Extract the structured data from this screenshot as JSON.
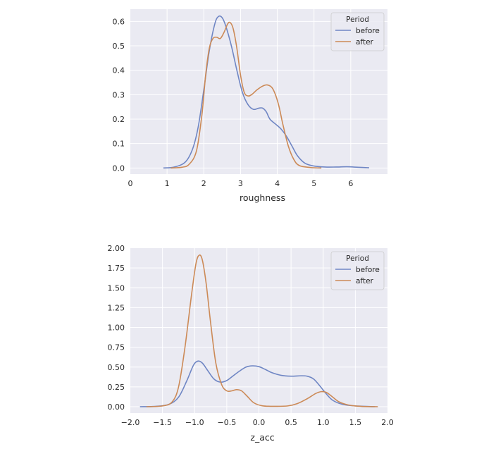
{
  "chart_data": [
    {
      "type": "line",
      "title": "",
      "xlabel": "roughness",
      "ylabel": "",
      "xlim": [
        0,
        7
      ],
      "ylim": [
        -0.025,
        0.65
      ],
      "x_ticks": [
        0,
        1,
        2,
        3,
        4,
        5,
        6
      ],
      "y_ticks": [
        0.0,
        0.1,
        0.2,
        0.3,
        0.4,
        0.5,
        0.6
      ],
      "x_tick_labels": [
        "0",
        "1",
        "2",
        "3",
        "4",
        "5",
        "6"
      ],
      "y_tick_labels": [
        "0.0",
        "0.1",
        "0.2",
        "0.3",
        "0.4",
        "0.5",
        "0.6"
      ],
      "grid": true,
      "legend": {
        "title": "Period",
        "placement": "top-right"
      },
      "series": [
        {
          "name": "before",
          "color": "#6f86c4",
          "points": [
            [
              0.9,
              0.0
            ],
            [
              1.2,
              0.004
            ],
            [
              1.5,
              0.025
            ],
            [
              1.7,
              0.08
            ],
            [
              1.85,
              0.17
            ],
            [
              2.0,
              0.32
            ],
            [
              2.15,
              0.48
            ],
            [
              2.3,
              0.59
            ],
            [
              2.4,
              0.62
            ],
            [
              2.5,
              0.615
            ],
            [
              2.6,
              0.58
            ],
            [
              2.75,
              0.5
            ],
            [
              2.9,
              0.4
            ],
            [
              3.05,
              0.31
            ],
            [
              3.2,
              0.26
            ],
            [
              3.35,
              0.24
            ],
            [
              3.5,
              0.245
            ],
            [
              3.6,
              0.245
            ],
            [
              3.7,
              0.23
            ],
            [
              3.8,
              0.2
            ],
            [
              3.95,
              0.18
            ],
            [
              4.1,
              0.16
            ],
            [
              4.25,
              0.13
            ],
            [
              4.4,
              0.09
            ],
            [
              4.55,
              0.05
            ],
            [
              4.75,
              0.02
            ],
            [
              5.0,
              0.008
            ],
            [
              5.3,
              0.004
            ],
            [
              5.6,
              0.004
            ],
            [
              5.9,
              0.005
            ],
            [
              6.2,
              0.003
            ],
            [
              6.5,
              0.001
            ]
          ]
        },
        {
          "name": "after",
          "color": "#cc8a57",
          "points": [
            [
              1.1,
              0.0
            ],
            [
              1.4,
              0.003
            ],
            [
              1.6,
              0.015
            ],
            [
              1.8,
              0.07
            ],
            [
              1.95,
              0.22
            ],
            [
              2.05,
              0.38
            ],
            [
              2.15,
              0.49
            ],
            [
              2.25,
              0.53
            ],
            [
              2.35,
              0.535
            ],
            [
              2.45,
              0.53
            ],
            [
              2.55,
              0.555
            ],
            [
              2.65,
              0.59
            ],
            [
              2.72,
              0.595
            ],
            [
              2.8,
              0.57
            ],
            [
              2.9,
              0.49
            ],
            [
              3.0,
              0.38
            ],
            [
              3.1,
              0.31
            ],
            [
              3.2,
              0.295
            ],
            [
              3.3,
              0.3
            ],
            [
              3.45,
              0.32
            ],
            [
              3.6,
              0.335
            ],
            [
              3.72,
              0.34
            ],
            [
              3.85,
              0.33
            ],
            [
              3.95,
              0.3
            ],
            [
              4.05,
              0.25
            ],
            [
              4.15,
              0.18
            ],
            [
              4.3,
              0.09
            ],
            [
              4.45,
              0.035
            ],
            [
              4.6,
              0.01
            ],
            [
              4.9,
              0.002
            ],
            [
              5.2,
              0.0
            ]
          ]
        }
      ]
    },
    {
      "type": "line",
      "title": "",
      "xlabel": "z_acc",
      "ylabel": "",
      "xlim": [
        -2.0,
        2.0
      ],
      "ylim": [
        -0.08,
        2.0
      ],
      "x_ticks": [
        -2.0,
        -1.5,
        -1.0,
        -0.5,
        0.0,
        0.5,
        1.0,
        1.5,
        2.0
      ],
      "y_ticks": [
        0.0,
        0.25,
        0.5,
        0.75,
        1.0,
        1.25,
        1.5,
        1.75,
        2.0
      ],
      "x_tick_labels": [
        "−2.0",
        "−1.5",
        "−1.0",
        "−0.5",
        "0.0",
        "0.5",
        "1.0",
        "1.5",
        "2.0"
      ],
      "y_tick_labels": [
        "0.00",
        "0.25",
        "0.50",
        "0.75",
        "1.00",
        "1.25",
        "1.50",
        "1.75",
        "2.00"
      ],
      "grid": true,
      "legend": {
        "title": "Period",
        "placement": "top-right"
      },
      "series": [
        {
          "name": "before",
          "color": "#6f86c4",
          "points": [
            [
              -1.85,
              0.0
            ],
            [
              -1.6,
              0.005
            ],
            [
              -1.4,
              0.03
            ],
            [
              -1.25,
              0.12
            ],
            [
              -1.12,
              0.33
            ],
            [
              -1.02,
              0.52
            ],
            [
              -0.95,
              0.575
            ],
            [
              -0.88,
              0.55
            ],
            [
              -0.8,
              0.46
            ],
            [
              -0.7,
              0.35
            ],
            [
              -0.6,
              0.31
            ],
            [
              -0.5,
              0.33
            ],
            [
              -0.4,
              0.39
            ],
            [
              -0.3,
              0.45
            ],
            [
              -0.2,
              0.5
            ],
            [
              -0.1,
              0.515
            ],
            [
              0.0,
              0.505
            ],
            [
              0.1,
              0.47
            ],
            [
              0.2,
              0.43
            ],
            [
              0.35,
              0.395
            ],
            [
              0.5,
              0.385
            ],
            [
              0.65,
              0.39
            ],
            [
              0.75,
              0.385
            ],
            [
              0.85,
              0.35
            ],
            [
              0.95,
              0.26
            ],
            [
              1.05,
              0.16
            ],
            [
              1.15,
              0.08
            ],
            [
              1.3,
              0.03
            ],
            [
              1.5,
              0.01
            ],
            [
              1.8,
              0.0
            ]
          ]
        },
        {
          "name": "after",
          "color": "#cc8a57",
          "points": [
            [
              -1.75,
              0.0
            ],
            [
              -1.5,
              0.01
            ],
            [
              -1.35,
              0.06
            ],
            [
              -1.25,
              0.25
            ],
            [
              -1.15,
              0.75
            ],
            [
              -1.05,
              1.4
            ],
            [
              -0.98,
              1.8
            ],
            [
              -0.93,
              1.91
            ],
            [
              -0.88,
              1.85
            ],
            [
              -0.82,
              1.55
            ],
            [
              -0.75,
              1.05
            ],
            [
              -0.67,
              0.55
            ],
            [
              -0.58,
              0.28
            ],
            [
              -0.5,
              0.2
            ],
            [
              -0.42,
              0.2
            ],
            [
              -0.35,
              0.215
            ],
            [
              -0.27,
              0.2
            ],
            [
              -0.18,
              0.13
            ],
            [
              -0.08,
              0.05
            ],
            [
              0.05,
              0.012
            ],
            [
              0.25,
              0.005
            ],
            [
              0.45,
              0.01
            ],
            [
              0.6,
              0.04
            ],
            [
              0.75,
              0.1
            ],
            [
              0.88,
              0.165
            ],
            [
              0.97,
              0.19
            ],
            [
              1.05,
              0.18
            ],
            [
              1.15,
              0.12
            ],
            [
              1.25,
              0.06
            ],
            [
              1.4,
              0.02
            ],
            [
              1.6,
              0.004
            ],
            [
              1.85,
              0.0
            ]
          ]
        }
      ]
    }
  ]
}
